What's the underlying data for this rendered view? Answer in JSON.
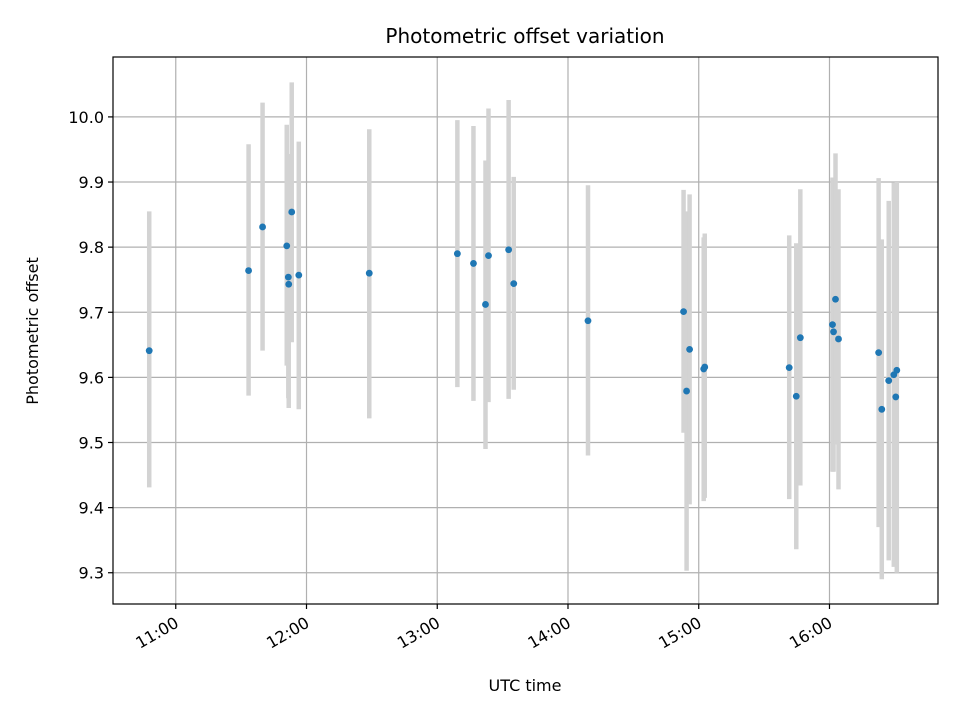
{
  "chart_data": {
    "type": "scatter",
    "title": "Photometric offset variation",
    "xlabel": "UTC time",
    "ylabel": "Photometric offset",
    "xlim_hours": [
      10.52,
      16.83
    ],
    "ylim": [
      9.252,
      10.092
    ],
    "grid": true,
    "x_ticks": [
      {
        "hour": 11,
        "label": "11:00"
      },
      {
        "hour": 12,
        "label": "12:00"
      },
      {
        "hour": 13,
        "label": "13:00"
      },
      {
        "hour": 14,
        "label": "14:00"
      },
      {
        "hour": 15,
        "label": "15:00"
      },
      {
        "hour": 16,
        "label": "16:00"
      }
    ],
    "y_ticks": [
      {
        "value": 9.3,
        "label": "9.3"
      },
      {
        "value": 9.4,
        "label": "9.4"
      },
      {
        "value": 9.5,
        "label": "9.5"
      },
      {
        "value": 9.6,
        "label": "9.6"
      },
      {
        "value": 9.7,
        "label": "9.7"
      },
      {
        "value": 9.8,
        "label": "9.8"
      },
      {
        "value": 9.9,
        "label": "9.9"
      },
      {
        "value": 10.0,
        "label": "10.0"
      }
    ],
    "point_color": "#1f77b4",
    "errorbar_color": "#d3d3d3",
    "points": [
      {
        "t": 10.797,
        "y": 9.641,
        "lo": 9.431,
        "hi": 9.855
      },
      {
        "t": 11.557,
        "y": 9.764,
        "lo": 9.572,
        "hi": 9.958
      },
      {
        "t": 11.664,
        "y": 9.831,
        "lo": 9.641,
        "hi": 10.022
      },
      {
        "t": 11.849,
        "y": 9.802,
        "lo": 9.618,
        "hi": 9.988
      },
      {
        "t": 11.861,
        "y": 9.754,
        "lo": 9.568,
        "hi": 9.943
      },
      {
        "t": 11.864,
        "y": 9.743,
        "lo": 9.553,
        "hi": 9.935
      },
      {
        "t": 11.887,
        "y": 9.854,
        "lo": 9.654,
        "hi": 10.053
      },
      {
        "t": 11.941,
        "y": 9.757,
        "lo": 9.551,
        "hi": 9.962
      },
      {
        "t": 12.48,
        "y": 9.76,
        "lo": 9.537,
        "hi": 9.981
      },
      {
        "t": 13.154,
        "y": 9.79,
        "lo": 9.585,
        "hi": 9.995
      },
      {
        "t": 13.277,
        "y": 9.775,
        "lo": 9.564,
        "hi": 9.986
      },
      {
        "t": 13.369,
        "y": 9.712,
        "lo": 9.49,
        "hi": 9.933
      },
      {
        "t": 13.392,
        "y": 9.787,
        "lo": 9.562,
        "hi": 10.013
      },
      {
        "t": 13.546,
        "y": 9.796,
        "lo": 9.567,
        "hi": 10.026
      },
      {
        "t": 13.585,
        "y": 9.744,
        "lo": 9.581,
        "hi": 9.908
      },
      {
        "t": 14.153,
        "y": 9.687,
        "lo": 9.48,
        "hi": 9.895
      },
      {
        "t": 14.884,
        "y": 9.701,
        "lo": 9.515,
        "hi": 9.888
      },
      {
        "t": 14.907,
        "y": 9.579,
        "lo": 9.303,
        "hi": 9.855
      },
      {
        "t": 14.93,
        "y": 9.643,
        "lo": 9.405,
        "hi": 9.881
      },
      {
        "t": 15.038,
        "y": 9.613,
        "lo": 9.41,
        "hi": 9.815
      },
      {
        "t": 15.046,
        "y": 9.616,
        "lo": 9.415,
        "hi": 9.821
      },
      {
        "t": 15.692,
        "y": 9.615,
        "lo": 9.413,
        "hi": 9.818
      },
      {
        "t": 15.746,
        "y": 9.571,
        "lo": 9.336,
        "hi": 9.806
      },
      {
        "t": 15.777,
        "y": 9.661,
        "lo": 9.434,
        "hi": 9.889
      },
      {
        "t": 16.023,
        "y": 9.681,
        "lo": 9.455,
        "hi": 9.907
      },
      {
        "t": 16.031,
        "y": 9.67,
        "lo": 9.455,
        "hi": 9.886
      },
      {
        "t": 16.046,
        "y": 9.72,
        "lo": 9.497,
        "hi": 9.944
      },
      {
        "t": 16.069,
        "y": 9.659,
        "lo": 9.428,
        "hi": 9.889
      },
      {
        "t": 16.376,
        "y": 9.638,
        "lo": 9.37,
        "hi": 9.906
      },
      {
        "t": 16.4,
        "y": 9.551,
        "lo": 9.29,
        "hi": 9.812
      },
      {
        "t": 16.453,
        "y": 9.595,
        "lo": 9.319,
        "hi": 9.871
      },
      {
        "t": 16.492,
        "y": 9.604,
        "lo": 9.309,
        "hi": 9.899
      },
      {
        "t": 16.507,
        "y": 9.57,
        "lo": 9.318,
        "hi": 9.823
      },
      {
        "t": 16.515,
        "y": 9.611,
        "lo": 9.3,
        "hi": 9.9
      }
    ]
  }
}
